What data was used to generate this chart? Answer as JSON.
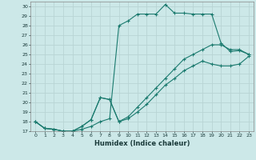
{
  "title": "",
  "xlabel": "Humidex (Indice chaleur)",
  "xlim": [
    -0.5,
    23.5
  ],
  "ylim": [
    17,
    30.5
  ],
  "xticks": [
    0,
    1,
    2,
    3,
    4,
    5,
    6,
    7,
    8,
    9,
    10,
    11,
    12,
    13,
    14,
    15,
    16,
    17,
    18,
    19,
    20,
    21,
    22,
    23
  ],
  "yticks": [
    17,
    18,
    19,
    20,
    21,
    22,
    23,
    24,
    25,
    26,
    27,
    28,
    29,
    30
  ],
  "background_color": "#cce8e8",
  "grid_color": "#b8d4d4",
  "line_color": "#1a7a6e",
  "line1_x": [
    0,
    1,
    2,
    3,
    4,
    5,
    6,
    7,
    8,
    9,
    10,
    11,
    12,
    13,
    14,
    15,
    16,
    17,
    18,
    19,
    20,
    21,
    22,
    23
  ],
  "line1_y": [
    18.0,
    17.3,
    17.2,
    17.0,
    17.0,
    17.2,
    17.5,
    18.0,
    18.3,
    28.0,
    28.5,
    29.2,
    29.2,
    29.2,
    30.2,
    29.3,
    29.3,
    29.2,
    29.2,
    29.2,
    26.2,
    25.3,
    25.4,
    25.0
  ],
  "line2_x": [
    0,
    1,
    2,
    3,
    4,
    5,
    6,
    7,
    8,
    9,
    10,
    11,
    12,
    13,
    14,
    15,
    16,
    17,
    18,
    19,
    20,
    21,
    22,
    23
  ],
  "line2_y": [
    18.0,
    17.3,
    17.2,
    17.0,
    17.0,
    17.5,
    18.2,
    20.5,
    20.3,
    18.0,
    18.5,
    19.5,
    20.5,
    21.5,
    22.5,
    23.5,
    24.5,
    25.0,
    25.5,
    26.0,
    26.0,
    25.5,
    25.5,
    25.0
  ],
  "line3_x": [
    0,
    1,
    2,
    3,
    4,
    5,
    6,
    7,
    8,
    9,
    10,
    11,
    12,
    13,
    14,
    15,
    16,
    17,
    18,
    19,
    20,
    21,
    22,
    23
  ],
  "line3_y": [
    18.0,
    17.3,
    17.2,
    17.0,
    17.0,
    17.5,
    18.2,
    20.5,
    20.3,
    18.0,
    18.3,
    19.0,
    19.8,
    20.8,
    21.8,
    22.5,
    23.3,
    23.8,
    24.3,
    24.0,
    23.8,
    23.8,
    24.0,
    24.8
  ]
}
